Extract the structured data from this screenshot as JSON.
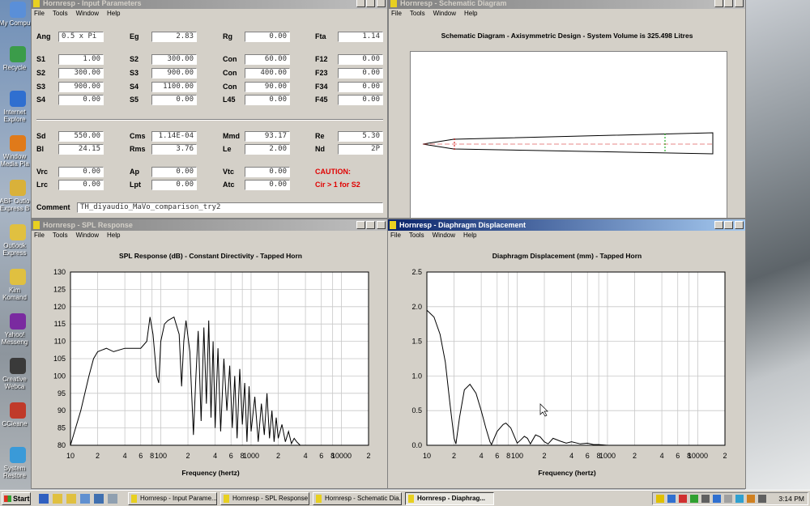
{
  "desktop_icons": [
    [
      "My Compu"
    ],
    [
      "Recycle"
    ],
    [
      "Internet",
      "Explore"
    ],
    [
      "Window",
      "Media Pla"
    ],
    [
      "ABF Outlo",
      "Express B"
    ],
    [
      "Outlook",
      "Express"
    ],
    [
      "Kim",
      "Komand"
    ],
    [
      "Yahoo!",
      "Messeng"
    ],
    [
      "Creative",
      "Webca"
    ],
    [
      "CCleane"
    ],
    [
      "System",
      "Restore"
    ]
  ],
  "input_window": {
    "title": "Hornresp - Input Parameters",
    "menu": [
      "File",
      "Tools",
      "Window",
      "Help"
    ],
    "rows": [
      [
        [
          "Ang",
          "0.5 x Pi"
        ],
        [
          "Eg",
          "2.83"
        ],
        [
          "Rg",
          "0.00"
        ],
        [
          "Fta",
          "1.14"
        ]
      ],
      [
        [
          "S1",
          "1.00"
        ],
        [
          "S2",
          "300.00"
        ],
        [
          "Con",
          "60.00"
        ],
        [
          "F12",
          "0.00"
        ]
      ],
      [
        [
          "S2",
          "300.00"
        ],
        [
          "S3",
          "900.00"
        ],
        [
          "Con",
          "400.00"
        ],
        [
          "F23",
          "0.00"
        ]
      ],
      [
        [
          "S3",
          "900.00"
        ],
        [
          "S4",
          "1100.00"
        ],
        [
          "Con",
          "90.00"
        ],
        [
          "F34",
          "0.00"
        ]
      ],
      [
        [
          "S4",
          "0.00"
        ],
        [
          "S5",
          "0.00"
        ],
        [
          "L45",
          "0.00"
        ],
        [
          "F45",
          "0.00"
        ]
      ],
      [
        [
          "Sd",
          "550.00"
        ],
        [
          "Cms",
          "1.14E-04"
        ],
        [
          "Mmd",
          "93.17"
        ],
        [
          "Re",
          "5.30"
        ]
      ],
      [
        [
          "Bl",
          "24.15"
        ],
        [
          "Rms",
          "3.76"
        ],
        [
          "Le",
          "2.00"
        ],
        [
          "Nd",
          "2P"
        ]
      ],
      [
        [
          "Vrc",
          "0.00"
        ],
        [
          "Ap",
          "0.00"
        ],
        [
          "Vtc",
          "0.00"
        ]
      ],
      [
        [
          "Lrc",
          "0.00"
        ],
        [
          "Lpt",
          "0.00"
        ],
        [
          "Atc",
          "0.00"
        ]
      ]
    ],
    "caution": [
      "CAUTION:",
      "Cir > 1 for S2"
    ],
    "comment": {
      "label": "Comment",
      "value": "TH_diyaudio_MaVo_comparison_try2"
    }
  },
  "schematic_window": {
    "title": "Hornresp - Schematic Diagram",
    "menu": [
      "File",
      "Tools",
      "Window",
      "Help"
    ],
    "heading": "Schematic Diagram - Axisymmetric Design - System Volume is 325.498 Litres"
  },
  "spl_window": {
    "title": "Hornresp - SPL Response",
    "menu": [
      "File",
      "Tools",
      "Window",
      "Help"
    ]
  },
  "displacement_window": {
    "title": "Hornresp - Diaphragm Displacement",
    "menu": [
      "File",
      "Tools",
      "Window",
      "Help"
    ]
  },
  "chart_data": [
    {
      "type": "line",
      "title": "SPL Response (dB) - Constant Directivity - Tapped Horn",
      "xlabel": "Frequency (hertz)",
      "x": [
        10,
        13,
        16,
        18,
        20,
        25,
        30,
        40,
        50,
        60,
        70,
        76,
        82,
        90,
        95,
        100,
        110,
        120,
        140,
        160,
        170,
        180,
        190,
        210,
        230,
        245,
        260,
        280,
        300,
        320,
        340,
        360,
        380,
        400,
        430,
        460,
        500,
        540,
        580,
        620,
        660,
        700,
        750,
        800,
        850,
        900,
        950,
        1000,
        1100,
        1200,
        1300,
        1400,
        1500,
        1600,
        1700,
        1800,
        1900,
        2000,
        2200,
        2400,
        2600,
        2800,
        3000,
        3200,
        3500
      ],
      "values": [
        80,
        90,
        100,
        105,
        107,
        108,
        107,
        108,
        108,
        108,
        110,
        117,
        112,
        100,
        98,
        110,
        115,
        116,
        117,
        112,
        97,
        110,
        116,
        107,
        83,
        100,
        113,
        87,
        114,
        92,
        116,
        88,
        110,
        85,
        108,
        84,
        105,
        90,
        103,
        85,
        100,
        82,
        102,
        86,
        98,
        81,
        97,
        84,
        94,
        81,
        92,
        83,
        95,
        82,
        90,
        81,
        88,
        82,
        86,
        81,
        84,
        80.5,
        82,
        81,
        80
      ],
      "color": "#000000",
      "x_scale": "log",
      "grid": true,
      "xlim": [
        10,
        20000
      ],
      "ylim": [
        80,
        130
      ],
      "xticks": [
        10,
        {
          "value": 20,
          "label": "2"
        },
        {
          "value": 40,
          "label": "4"
        },
        {
          "value": 60,
          "label": "6"
        },
        {
          "value": 80,
          "label": "8"
        },
        100,
        {
          "value": 200,
          "label": "2"
        },
        {
          "value": 400,
          "label": "4"
        },
        {
          "value": 600,
          "label": "6"
        },
        {
          "value": 800,
          "label": "8"
        },
        1000,
        {
          "value": 2000,
          "label": "2"
        },
        {
          "value": 4000,
          "label": "4"
        },
        {
          "value": 6000,
          "label": "6"
        },
        {
          "value": 8000,
          "label": "8"
        },
        10000,
        {
          "value": 20000,
          "label": "2"
        }
      ],
      "yticks": [
        80,
        85,
        90,
        95,
        100,
        105,
        110,
        115,
        120,
        125,
        130
      ]
    },
    {
      "type": "line",
      "title": "Diaphragm Displacement (mm) - Tapped Horn",
      "xlabel": "Frequency (hertz)",
      "x": [
        10,
        12,
        14,
        16,
        18,
        20,
        21,
        23,
        26,
        30,
        35,
        40,
        45,
        50,
        52,
        60,
        70,
        75,
        85,
        95,
        100,
        110,
        120,
        130,
        140,
        160,
        180,
        200,
        220,
        250,
        300,
        350,
        400,
        500,
        600,
        700,
        800,
        1000
      ],
      "values": [
        1.95,
        1.85,
        1.6,
        1.2,
        0.6,
        0.1,
        0.02,
        0.4,
        0.8,
        0.88,
        0.75,
        0.5,
        0.25,
        0.05,
        0.01,
        0.2,
        0.3,
        0.32,
        0.25,
        0.1,
        0.03,
        0.08,
        0.13,
        0.1,
        0.02,
        0.15,
        0.12,
        0.05,
        0.02,
        0.1,
        0.06,
        0.03,
        0.05,
        0.02,
        0.03,
        0.01,
        0.01,
        0
      ],
      "color": "#000000",
      "x_scale": "log",
      "grid": true,
      "xlim": [
        10,
        20000
      ],
      "ylim": [
        0,
        2.5
      ],
      "xticks": [
        10,
        {
          "value": 20,
          "label": "2"
        },
        {
          "value": 40,
          "label": "4"
        },
        {
          "value": 60,
          "label": "6"
        },
        {
          "value": 80,
          "label": "8"
        },
        100,
        {
          "value": 200,
          "label": "2"
        },
        {
          "value": 400,
          "label": "4"
        },
        {
          "value": 600,
          "label": "6"
        },
        {
          "value": 800,
          "label": "8"
        },
        1000,
        {
          "value": 2000,
          "label": "2"
        },
        {
          "value": 4000,
          "label": "4"
        },
        {
          "value": 6000,
          "label": "6"
        },
        {
          "value": 8000,
          "label": "8"
        },
        10000,
        {
          "value": 20000,
          "label": "2"
        }
      ],
      "yticks": [
        {
          "value": 0,
          "label": "0.0"
        },
        0.5,
        {
          "value": 1,
          "label": "1.0"
        },
        1.5,
        {
          "value": 2,
          "label": "2.0"
        },
        2.5
      ]
    }
  ],
  "taskbar": {
    "start": "Start",
    "tasks": [
      "Hornresp - Input Parame...",
      "Hornresp - SPL Response",
      "Hornresp - Schematic Dia...",
      "Hornresp - Diaphrag..."
    ],
    "clock": "3:14 PM"
  }
}
